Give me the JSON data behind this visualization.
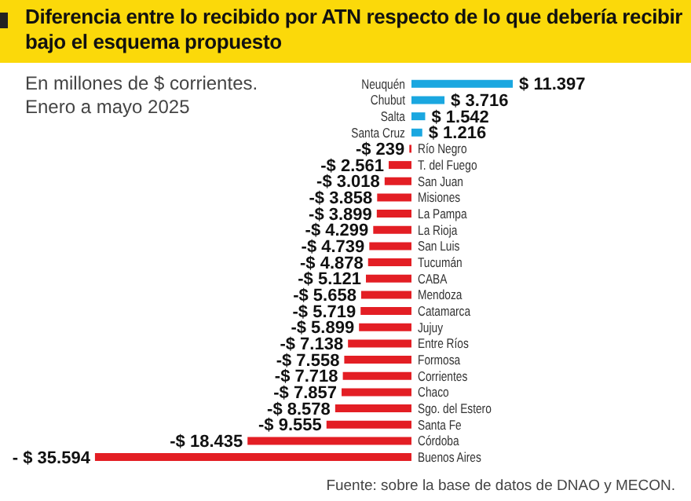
{
  "chart_data": {
    "type": "bar",
    "orientation": "horizontal",
    "title": "Diferencia entre lo recibido por ATN respecto de lo que debería recibir bajo el esquema propuesto",
    "subtitle": "En millones de $ corrientes. Enero a mayo 2025",
    "categories": [
      "Neuquén",
      "Chubut",
      "Salta",
      "Santa Cruz",
      "Río Negro",
      "T. del Fuego",
      "San Juan",
      "Misiones",
      "La Pampa",
      "La Rioja",
      "San Luis",
      "Tucumán",
      "CABA",
      "Mendoza",
      "Catamarca",
      "Jujuy",
      "Entre Ríos",
      "Formosa",
      "Corrientes",
      "Chaco",
      "Sgo. del Estero",
      "Santa Fe",
      "Córdoba",
      "Buenos Aires"
    ],
    "values": [
      11397,
      3716,
      1542,
      1216,
      -239,
      -2561,
      -3018,
      -3858,
      -3899,
      -4299,
      -4739,
      -4878,
      -5121,
      -5658,
      -5719,
      -5899,
      -7138,
      -7558,
      -7718,
      -7857,
      -8578,
      -9555,
      -18435,
      -35594
    ],
    "value_labels": [
      "$ 11.397",
      "$ 3.716",
      "$ 1.542",
      "$ 1.216",
      "-$ 239",
      "-$ 2.561",
      "-$ 3.018",
      "-$ 3.858",
      "-$ 3.899",
      "-$ 4.299",
      "-$ 4.739",
      "-$ 4.878",
      "-$ 5.121",
      "-$ 5.658",
      "-$ 5.719",
      "-$ 5.899",
      "-$ 7.138",
      "-$ 7.558",
      "-$ 7.718",
      "-$ 7.857",
      "-$ 8.578",
      "-$ 9.555",
      "-$ 18.435",
      "- $ 35.594"
    ],
    "colors": [
      "#1aa7e0",
      "#1aa7e0",
      "#1aa7e0",
      "#1aa7e0",
      "#e31e24",
      "#e31e24",
      "#e31e24",
      "#e31e24",
      "#e31e24",
      "#e31e24",
      "#e31e24",
      "#e31e24",
      "#e31e24",
      "#e31e24",
      "#e31e24",
      "#e31e24",
      "#e31e24",
      "#e31e24",
      "#e31e24",
      "#e31e24",
      "#e31e24",
      "#e31e24",
      "#e31e24",
      "#e31e24"
    ],
    "legend": false,
    "grid": false,
    "annotations": [
      "Fuente: sobre la base de datos de DNAO y MECON."
    ]
  }
}
